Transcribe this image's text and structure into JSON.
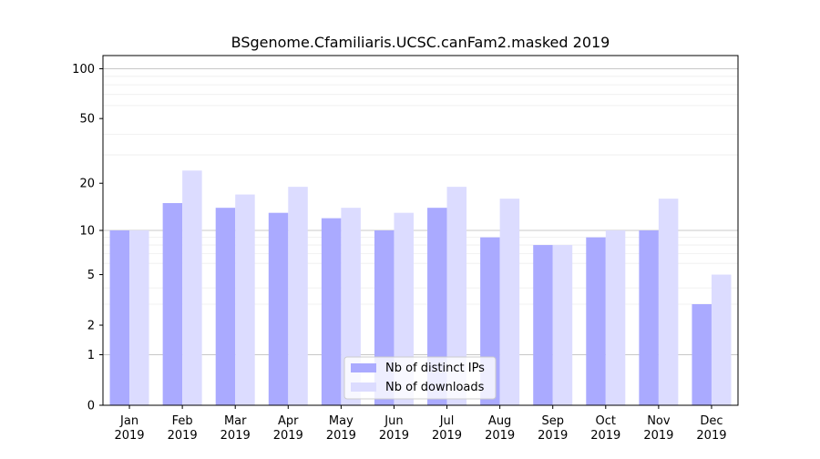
{
  "chart_data": {
    "type": "bar",
    "title": "BSgenome.Cfamiliaris.UCSC.canFam2.masked 2019",
    "xlabel": "",
    "ylabel": "",
    "y_scale": "log1p",
    "yticks": [
      0,
      1,
      2,
      5,
      10,
      20,
      50,
      100
    ],
    "ylim": [
      0,
      120
    ],
    "grid": "horizontal",
    "legend_position": "lower-center",
    "categories": [
      [
        "Jan",
        "2019"
      ],
      [
        "Feb",
        "2019"
      ],
      [
        "Mar",
        "2019"
      ],
      [
        "Apr",
        "2019"
      ],
      [
        "May",
        "2019"
      ],
      [
        "Jun",
        "2019"
      ],
      [
        "Jul",
        "2019"
      ],
      [
        "Aug",
        "2019"
      ],
      [
        "Sep",
        "2019"
      ],
      [
        "Oct",
        "2019"
      ],
      [
        "Nov",
        "2019"
      ],
      [
        "Dec",
        "2019"
      ]
    ],
    "series": [
      {
        "name": "Nb of distinct IPs",
        "color": "#aaaaff",
        "values": [
          10,
          15,
          14,
          13,
          12,
          10,
          14,
          9,
          8,
          9,
          10,
          3
        ]
      },
      {
        "name": "Nb of downloads",
        "color": "#dcdcff",
        "values": [
          10,
          24,
          17,
          19,
          14,
          13,
          19,
          16,
          8,
          10,
          16,
          5
        ]
      }
    ]
  }
}
